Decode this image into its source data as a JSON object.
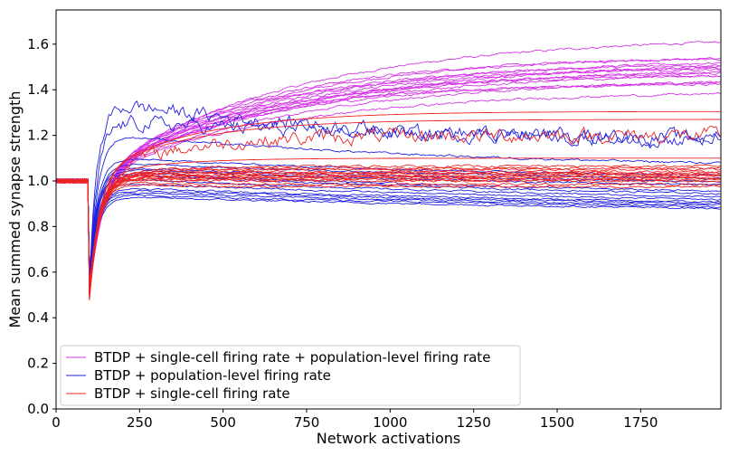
{
  "chart_data": {
    "type": "line",
    "xlabel": "Network activations",
    "ylabel": "Mean summed synapse strength",
    "xlim": [
      0,
      1990
    ],
    "ylim": [
      0.0,
      1.75
    ],
    "xticks": [
      0,
      250,
      500,
      750,
      1000,
      1250,
      1500,
      1750
    ],
    "yticks": [
      0.0,
      0.2,
      0.4,
      0.6,
      0.8,
      1.0,
      1.2,
      1.4,
      1.6
    ],
    "grid": false,
    "legend_position": "lower-left",
    "legend": [
      {
        "label": "BTDP + single-cell firing rate + population-level firing rate",
        "color": "#d633e8"
      },
      {
        "label": "BTDP + population-level firing rate",
        "color": "#1f1fe0"
      },
      {
        "label": "BTDP + single-cell firing rate",
        "color": "#ee2222"
      }
    ],
    "series_groups": [
      {
        "label": "BTDP + single-cell firing rate + population-level firing rate",
        "color": "#d633e8",
        "dip_min": 0.53,
        "rise_tau": 40,
        "finals": [
          1.635,
          1.55,
          1.545,
          1.535,
          1.53,
          1.52,
          1.51,
          1.5,
          1.495,
          1.485,
          1.48,
          1.47,
          1.455,
          1.44,
          1.43,
          1.395
        ],
        "taus": [
          600,
          520,
          480,
          560,
          640,
          500,
          540,
          600,
          450,
          520,
          580,
          470,
          620,
          500,
          440,
          560
        ],
        "noise": 0.004
      },
      {
        "label": "BTDP + population-level firing rate",
        "color": "#1f1fe0",
        "dip_min": 0.58,
        "rise_tau": 25,
        "peak": [
          1.34,
          1.26,
          1.2,
          1.1,
          1.08,
          1.06,
          1.05,
          1.04,
          1.03,
          1.01,
          0.99,
          0.97,
          0.96,
          0.95,
          0.94,
          0.93
        ],
        "finals": [
          1.16,
          1.18,
          1.05,
          1.0,
          0.985,
          0.97,
          0.95,
          0.91,
          0.895,
          0.88,
          0.87,
          0.865,
          0.86,
          0.855,
          0.845,
          0.84
        ],
        "taus": [
          800,
          900,
          1100,
          1300,
          1400,
          1500,
          1600,
          1700,
          1800,
          1900,
          2000,
          2000,
          2100,
          2100,
          2200,
          2200
        ],
        "noise": [
          0.025,
          0.025,
          0.004,
          0.003,
          0.003,
          0.003,
          0.003,
          0.003,
          0.003,
          0.003,
          0.003,
          0.003,
          0.003,
          0.003,
          0.003,
          0.003
        ]
      },
      {
        "label": "BTDP + single-cell firing rate",
        "color": "#ee2222",
        "dip_min": 0.505,
        "rise_tau": 30,
        "finals": [
          1.305,
          1.27,
          1.2,
          1.1,
          1.065,
          1.055,
          1.05,
          1.04,
          1.035,
          1.03,
          1.025,
          1.02,
          1.015,
          1.01,
          1.005,
          1.0,
          0.985,
          0.975
        ],
        "taus": [
          300,
          280,
          250,
          200,
          180,
          170,
          160,
          160,
          150,
          150,
          140,
          140,
          130,
          130,
          120,
          120,
          110,
          110
        ],
        "noise": [
          0.0,
          0.0,
          0.025,
          0.0,
          0.004,
          0.004,
          0.004,
          0.004,
          0.004,
          0.004,
          0.004,
          0.004,
          0.004,
          0.004,
          0.004,
          0.004,
          0.004,
          0.004
        ]
      }
    ],
    "dip_start_x": 95,
    "dip_end_x": 100
  }
}
